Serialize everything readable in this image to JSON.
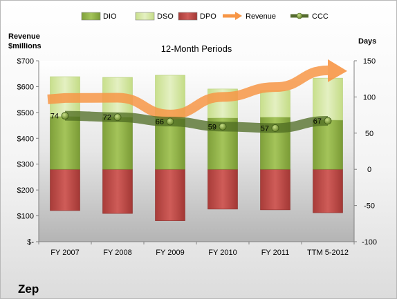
{
  "chart_data": {
    "type": "bar",
    "title": "12-Month Periods",
    "company": "Zep",
    "categories": [
      "FY 2007",
      "FY 2008",
      "FY 2009",
      "FY 2010",
      "FY 2011",
      "TTM 5-2012"
    ],
    "left_axis": {
      "title_line1": "Revenue",
      "title_line2": "$millions",
      "ticks": [
        "$-",
        "$100",
        "$200",
        "$300",
        "$400",
        "$500",
        "$600",
        "$700"
      ],
      "ylim": [
        0,
        700
      ]
    },
    "right_axis": {
      "title": "Days",
      "ticks": [
        "-100",
        "-50",
        "0",
        "50",
        "100",
        "150"
      ],
      "ylim": [
        -100,
        150
      ]
    },
    "legend": {
      "position": "top",
      "items": [
        {
          "name": "DIO",
          "kind": "bar",
          "color": "#93b347"
        },
        {
          "name": "DSO",
          "kind": "bar",
          "color": "#d6e8a8"
        },
        {
          "name": "DPO",
          "kind": "bar",
          "color": "#c0504d"
        },
        {
          "name": "Revenue",
          "kind": "arrow",
          "color": "#f79646"
        },
        {
          "name": "CCC",
          "kind": "line",
          "color": "#556b2f"
        }
      ]
    },
    "series_days": {
      "DIO": [
        73,
        72,
        70,
        71,
        72,
        68
      ],
      "DSO": [
        55,
        55,
        60,
        40,
        37,
        58
      ],
      "DPO": [
        -57,
        -61,
        -71,
        -55,
        -56,
        -60
      ]
    },
    "series": [
      {
        "name": "Revenue",
        "values": [
          556,
          557,
          492,
          560,
          598,
          663
        ]
      },
      {
        "name": "CCC",
        "values": [
          74,
          72,
          66,
          59,
          57,
          67
        ]
      }
    ],
    "ccc_labels": [
      "74",
      "72",
      "66",
      "59",
      "57",
      "67"
    ],
    "grid": false
  }
}
